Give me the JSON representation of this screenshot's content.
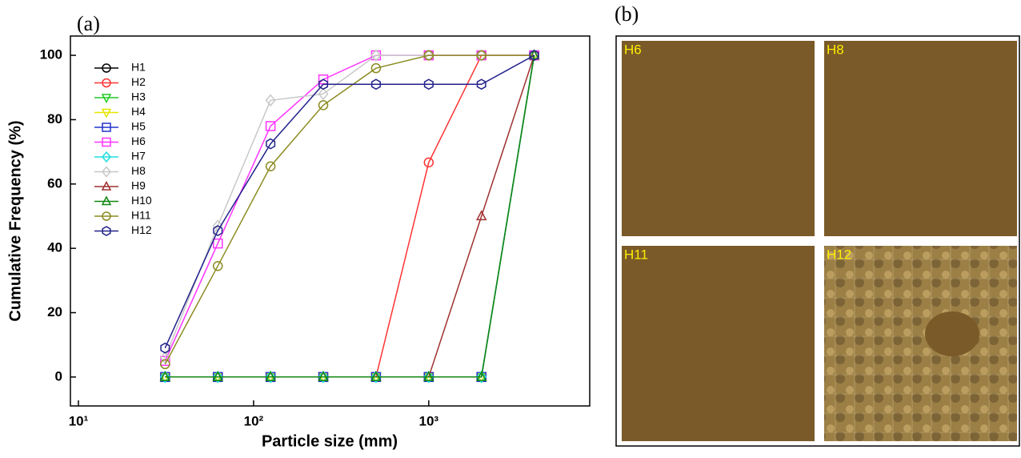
{
  "chart_data": {
    "type": "line",
    "panel_label": "(a)",
    "x_label": "Particle size (mm)",
    "y_label": "Cumulative Frequency (%)",
    "x_scale": "log",
    "x": [
      31.25,
      62.5,
      125,
      250,
      500,
      1000,
      2000,
      4000
    ],
    "xlim": [
      9,
      8300
    ],
    "ylim": [
      -9,
      106
    ],
    "xticks": [
      {
        "value": 10,
        "label": "10¹"
      },
      {
        "value": 100,
        "label": "10²"
      },
      {
        "value": 1000,
        "label": "10³"
      }
    ],
    "yticks": [
      0,
      20,
      40,
      60,
      80,
      100
    ],
    "legend": "upper left",
    "series": [
      {
        "name": "H1",
        "color": "#000000",
        "marker": "circle",
        "values": [
          0,
          0,
          0,
          0,
          0,
          0,
          0,
          100
        ]
      },
      {
        "name": "H2",
        "color": "#ff3333",
        "marker": "circle",
        "values": [
          0,
          0,
          0,
          0,
          0,
          66.7,
          100,
          100
        ]
      },
      {
        "name": "H3",
        "color": "#22cc22",
        "marker": "triangle-down",
        "values": [
          0,
          0,
          0,
          0,
          0,
          0,
          0,
          100
        ]
      },
      {
        "name": "H4",
        "color": "#e6e600",
        "marker": "triangle-down",
        "values": [
          0,
          0,
          0,
          0,
          0,
          0,
          0,
          100
        ]
      },
      {
        "name": "H5",
        "color": "#2233cc",
        "marker": "square",
        "values": [
          0,
          0,
          0,
          0,
          0,
          0,
          0,
          100
        ]
      },
      {
        "name": "H6",
        "color": "#ff33ff",
        "marker": "square",
        "values": [
          5,
          41.5,
          78,
          92.5,
          100,
          100,
          100,
          100
        ]
      },
      {
        "name": "H7",
        "color": "#22dddd",
        "marker": "diamond",
        "values": [
          0,
          0,
          0,
          0,
          0,
          0,
          0,
          100
        ]
      },
      {
        "name": "H8",
        "color": "#c8c8c8",
        "marker": "diamond",
        "values": [
          6,
          47,
          86,
          88,
          100,
          100,
          100,
          100
        ]
      },
      {
        "name": "H9",
        "color": "#a03030",
        "marker": "triangle-up",
        "values": [
          0,
          0,
          0,
          0,
          0,
          0,
          50,
          100
        ]
      },
      {
        "name": "H10",
        "color": "#118811",
        "marker": "triangle-up",
        "values": [
          0,
          0,
          0,
          0,
          0,
          0,
          0,
          100
        ]
      },
      {
        "name": "H11",
        "color": "#8b8b22",
        "marker": "circle",
        "values": [
          4,
          34.5,
          65.5,
          84.5,
          96,
          100,
          100,
          100
        ]
      },
      {
        "name": "H12",
        "color": "#22228b",
        "marker": "hexagon",
        "values": [
          9,
          45.5,
          72.5,
          91,
          91,
          91,
          91,
          100
        ]
      }
    ]
  },
  "images": {
    "panel_label": "(b)",
    "panels": [
      "H6",
      "H8",
      "H11",
      "H12"
    ]
  }
}
